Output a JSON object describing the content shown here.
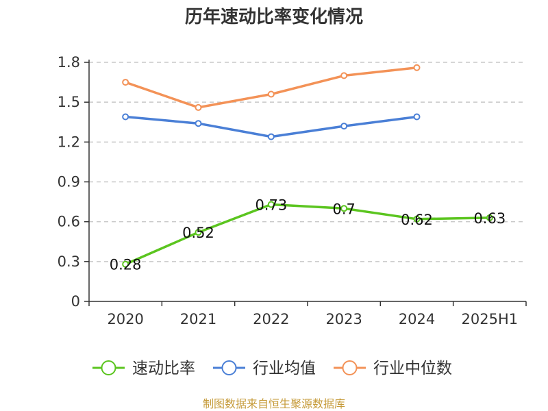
{
  "source_note": "制图数据来自恒生聚源数据库",
  "colors": {
    "axis": "#333333",
    "grid": "#c8c8c8",
    "source": "#c69b3a"
  },
  "chart_data": {
    "type": "line",
    "title": "历年速动比率变化情况",
    "categories": [
      "2020",
      "2021",
      "2022",
      "2023",
      "2024",
      "2025H1"
    ],
    "ylim": [
      0,
      1.8
    ],
    "yticks": [
      0,
      0.3,
      0.6,
      0.9,
      1.2,
      1.5,
      1.8
    ],
    "ytick_labels": [
      "0",
      "0.3",
      "0.6",
      "0.9",
      "1.2",
      "1.5",
      "1.8"
    ],
    "grid": true,
    "legend_position": "bottom",
    "series": [
      {
        "name": "速动比率",
        "color": "#5bc51f",
        "values": [
          0.28,
          0.52,
          0.73,
          0.7,
          0.62,
          0.63
        ],
        "labels": [
          "0.28",
          "0.52",
          "0.73",
          "0.7",
          "0.62",
          "0.63"
        ]
      },
      {
        "name": "行业均值",
        "color": "#4a7fd6",
        "values": [
          1.39,
          1.34,
          1.24,
          1.32,
          1.39,
          null
        ]
      },
      {
        "name": "行业中位数",
        "color": "#f39257",
        "values": [
          1.65,
          1.46,
          1.56,
          1.7,
          1.76,
          null
        ]
      }
    ]
  }
}
